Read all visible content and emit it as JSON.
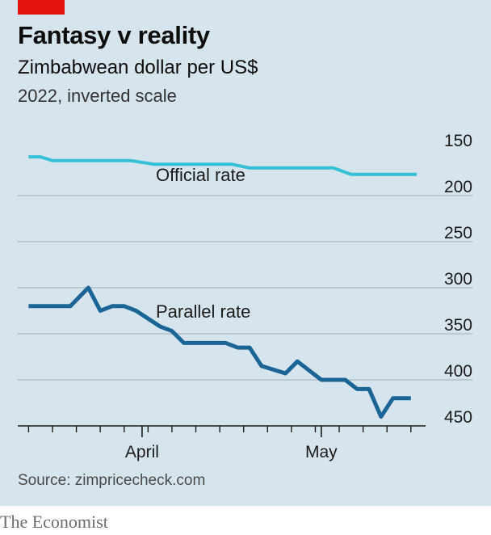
{
  "header": {
    "title": "Fantasy v reality",
    "subtitle": "Zimbabwean dollar per US$",
    "note": "2022, inverted scale"
  },
  "footer": {
    "source": "Source: zimpricecheck.com",
    "brand": "The Economist"
  },
  "colors": {
    "background": "#d6e4ed",
    "accent": "#e3120b",
    "official": "#35c0d6",
    "parallel": "#1a6496"
  },
  "chart_data": {
    "type": "line",
    "title": "Fantasy v reality",
    "subtitle": "Zimbabwean dollar per US$",
    "yaxis": {
      "inverted": true,
      "ylim": [
        150,
        450
      ],
      "ticks": [
        150,
        200,
        250,
        300,
        350,
        400,
        450
      ],
      "position": "right"
    },
    "xaxis": {
      "tick_labels": [
        {
          "label": "April",
          "date": "2022-04-01"
        },
        {
          "label": "May",
          "date": "2022-05-01"
        }
      ],
      "xlim": [
        "2022-03-12",
        "2022-05-19"
      ]
    },
    "grid": true,
    "series": [
      {
        "name": "Official rate",
        "points": [
          [
            "2022-03-13",
            158
          ],
          [
            "2022-03-15",
            158
          ],
          [
            "2022-03-17",
            162
          ],
          [
            "2022-03-30",
            162
          ],
          [
            "2022-04-03",
            166
          ],
          [
            "2022-04-16",
            166
          ],
          [
            "2022-04-19",
            170
          ],
          [
            "2022-05-03",
            170
          ],
          [
            "2022-05-06",
            177
          ],
          [
            "2022-05-17",
            177
          ]
        ]
      },
      {
        "name": "Parallel rate",
        "points": [
          [
            "2022-03-13",
            320
          ],
          [
            "2022-03-20",
            320
          ],
          [
            "2022-03-23",
            300
          ],
          [
            "2022-03-25",
            325
          ],
          [
            "2022-03-27",
            320
          ],
          [
            "2022-03-29",
            320
          ],
          [
            "2022-03-31",
            325
          ],
          [
            "2022-04-04",
            342
          ],
          [
            "2022-04-06",
            347
          ],
          [
            "2022-04-08",
            360
          ],
          [
            "2022-04-15",
            360
          ],
          [
            "2022-04-17",
            365
          ],
          [
            "2022-04-19",
            365
          ],
          [
            "2022-04-21",
            385
          ],
          [
            "2022-04-25",
            393
          ],
          [
            "2022-04-27",
            380
          ],
          [
            "2022-05-01",
            400
          ],
          [
            "2022-05-05",
            400
          ],
          [
            "2022-05-07",
            410
          ],
          [
            "2022-05-09",
            410
          ],
          [
            "2022-05-11",
            440
          ],
          [
            "2022-05-13",
            420
          ],
          [
            "2022-05-15",
            420
          ],
          [
            "2022-05-16",
            420
          ]
        ]
      }
    ]
  }
}
